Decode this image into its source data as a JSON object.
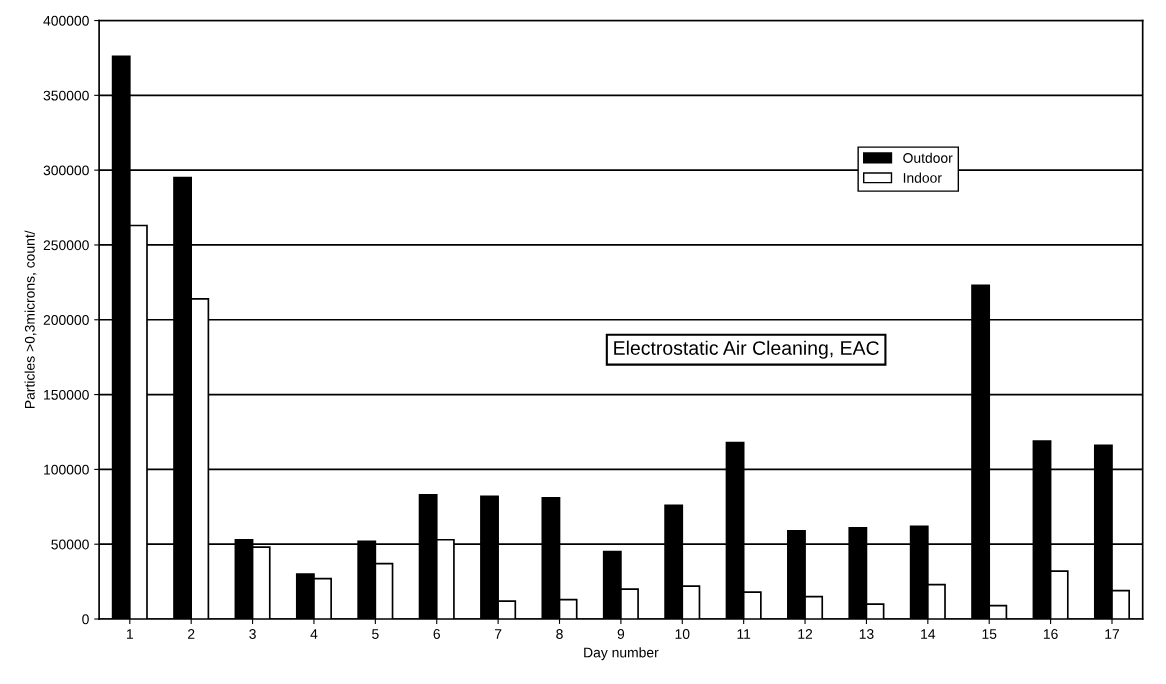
{
  "chart_data": {
    "type": "bar",
    "xlabel": "Day number",
    "ylabel": "Particles >0,3microns, count/",
    "categories": [
      "1",
      "2",
      "3",
      "4",
      "5",
      "6",
      "7",
      "8",
      "9",
      "10",
      "11",
      "12",
      "13",
      "14",
      "15",
      "16",
      "17"
    ],
    "series": [
      {
        "name": "Outdoor",
        "color": "#000000",
        "values": [
          376000,
          295000,
          53000,
          30000,
          52000,
          83000,
          82000,
          81000,
          45000,
          76000,
          118000,
          59000,
          61000,
          62000,
          223000,
          119000,
          116000
        ]
      },
      {
        "name": "Indoor",
        "color": "#ffffff",
        "values": [
          263000,
          214000,
          48000,
          27000,
          37000,
          53000,
          12000,
          13000,
          20000,
          22000,
          18000,
          15000,
          10000,
          23000,
          9000,
          32000,
          19000
        ]
      }
    ],
    "ylim": [
      0,
      400000
    ],
    "yticks": [
      0,
      50000,
      100000,
      150000,
      200000,
      250000,
      300000,
      350000,
      400000
    ],
    "grid": "y",
    "legend": "top right",
    "annotations": [
      "Electrostatic Air Cleaning, EAC"
    ]
  }
}
